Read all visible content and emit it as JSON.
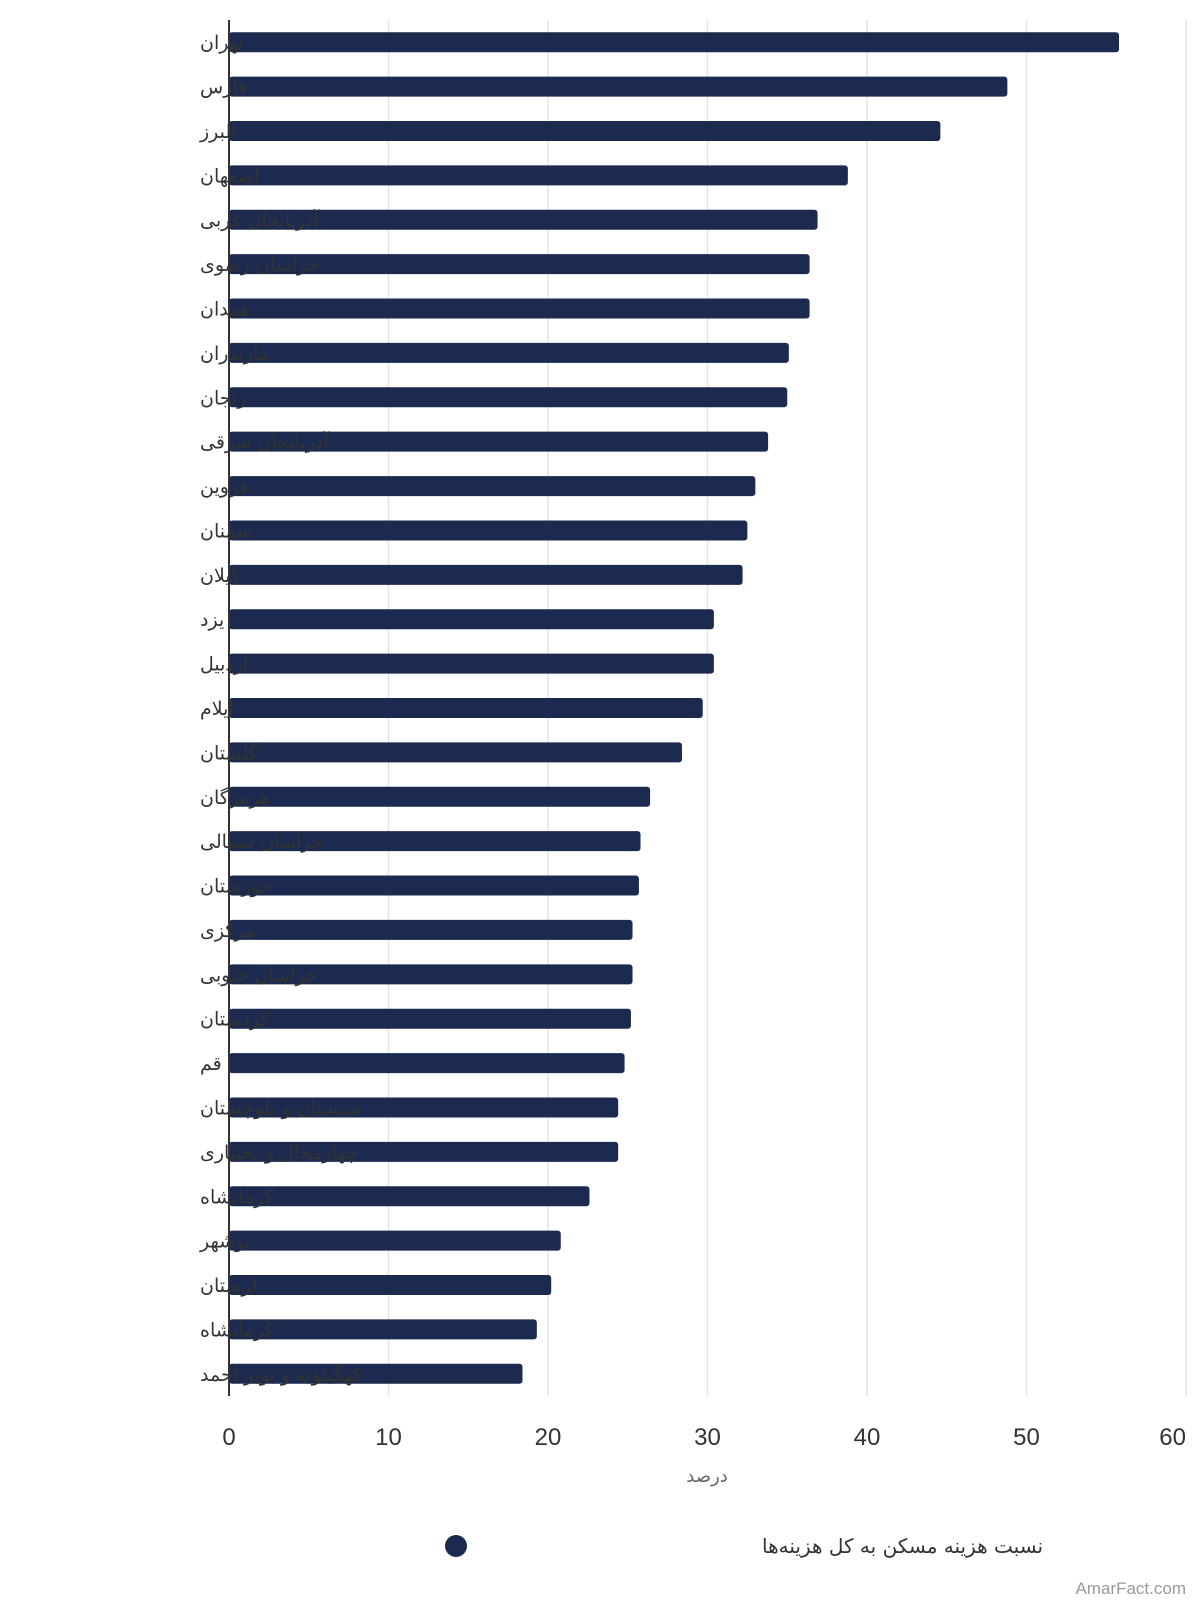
{
  "chart_data": {
    "type": "bar",
    "orientation": "horizontal",
    "categories": [
      "تهران",
      "فارس",
      "البرز",
      "اصفهان",
      "آذربایجان غربی",
      "خراسان رضوی",
      "همدان",
      "مازندران",
      "زنجان",
      "آذربایجان شرقی",
      "قزوین",
      "سمنان",
      "گیلان",
      "یزد",
      "اردبیل",
      "ایلام",
      "گلستان",
      "هرمزگان",
      "خراسان شمالی",
      "خوزستان",
      "مرکزی",
      "خراسان جنوبی",
      "کردستان",
      "قم",
      "سیستان و بلوچستان",
      "چهارمحال و بختیاری",
      "کرمانشاه",
      "بوشهر",
      "لرستان",
      "کرمانشاه",
      "کهگیلویه و بویر احمد"
    ],
    "series": [
      {
        "name": "نسبت هزینه مسکن به کل هزینه‌ها",
        "color": "#1b2a4e",
        "values": [
          55.8,
          48.8,
          44.6,
          38.8,
          36.9,
          36.4,
          36.4,
          35.1,
          35.0,
          33.8,
          33.0,
          32.5,
          32.2,
          30.4,
          30.4,
          29.7,
          28.4,
          26.4,
          25.8,
          25.7,
          25.3,
          25.3,
          25.2,
          24.8,
          24.4,
          24.4,
          22.6,
          20.8,
          20.2,
          19.3,
          18.4
        ]
      }
    ],
    "xlim": [
      0,
      60
    ],
    "xticks": [
      0,
      10,
      20,
      30,
      40,
      50,
      60
    ],
    "xlabel": "درصد",
    "grid": "vertical",
    "legend_position": "bottom-center"
  },
  "credit": "AmarFact.com"
}
